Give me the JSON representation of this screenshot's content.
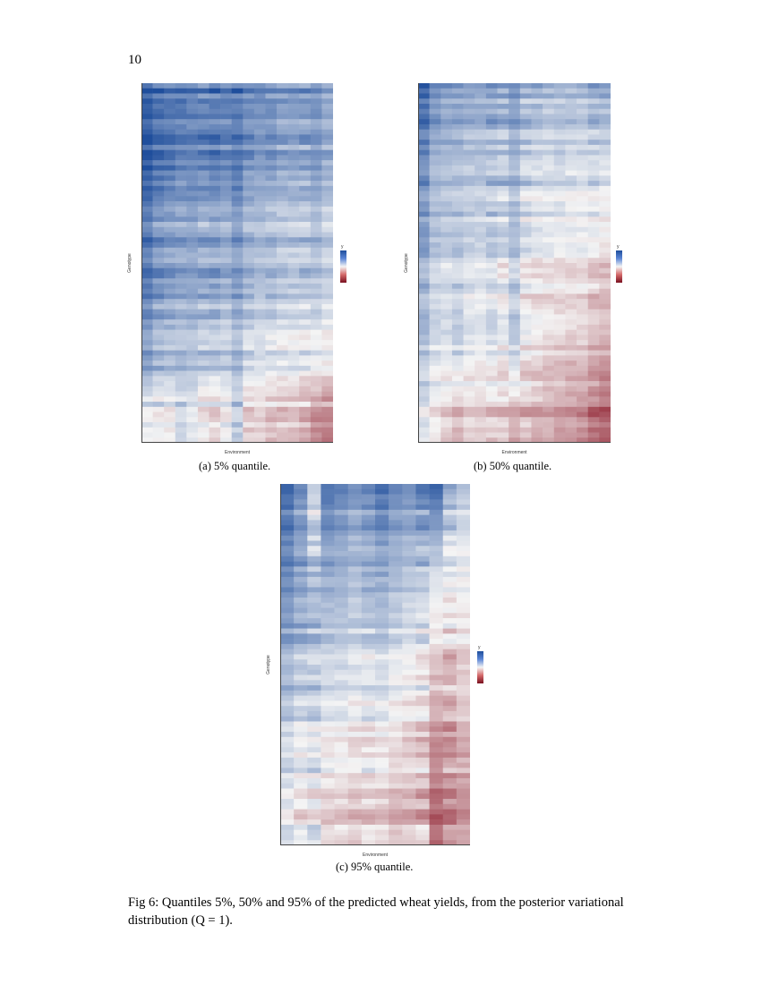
{
  "page_number": "10",
  "panels": [
    {
      "id": "a",
      "caption": "(a) 5% quantile.",
      "xlabel": "Environment",
      "ylabel": "Genotype",
      "legend_title": "y",
      "n_cols": 17,
      "n_rows": 70,
      "colors": {
        "high": "#1f4e9c",
        "mid": "#f4f4f4",
        "low": "#8a1525"
      },
      "coarse_values_top_to_bottom": [
        [
          0.95,
          0.85,
          0.8,
          0.8,
          0.75,
          0.75,
          0.8,
          0.75,
          0.8,
          0.7,
          0.65,
          0.65,
          0.6,
          0.6,
          0.6,
          0.65,
          0.5
        ],
        [
          0.85,
          0.7,
          0.65,
          0.6,
          0.6,
          0.55,
          0.6,
          0.55,
          0.65,
          0.5,
          0.45,
          0.45,
          0.4,
          0.4,
          0.4,
          0.45,
          0.35
        ],
        [
          0.7,
          0.55,
          0.5,
          0.45,
          0.45,
          0.4,
          0.45,
          0.4,
          0.5,
          0.35,
          0.3,
          0.3,
          0.25,
          0.25,
          0.25,
          0.3,
          0.2
        ],
        [
          0.55,
          0.4,
          0.35,
          0.35,
          0.35,
          0.3,
          0.3,
          0.25,
          0.35,
          0.2,
          0.15,
          0.15,
          0.1,
          0.1,
          0.1,
          0.1,
          0.05
        ],
        [
          0.05,
          0.05,
          0.0,
          0.2,
          0.1,
          0.0,
          -0.1,
          0.05,
          0.3,
          -0.15,
          -0.15,
          -0.2,
          -0.2,
          -0.2,
          -0.25,
          -0.45,
          -0.5
        ]
      ]
    },
    {
      "id": "b",
      "caption": "(b) 50% quantile.",
      "xlabel": "Environment",
      "ylabel": "Genotype",
      "legend_title": "y",
      "n_cols": 17,
      "n_rows": 70,
      "colors": {
        "high": "#1f4e9c",
        "mid": "#f4f4f4",
        "low": "#8a1525"
      },
      "coarse_values_top_to_bottom": [
        [
          0.85,
          0.65,
          0.55,
          0.5,
          0.45,
          0.45,
          0.5,
          0.45,
          0.55,
          0.4,
          0.4,
          0.35,
          0.35,
          0.35,
          0.35,
          0.45,
          0.45
        ],
        [
          0.65,
          0.4,
          0.35,
          0.35,
          0.3,
          0.3,
          0.35,
          0.3,
          0.4,
          0.25,
          0.2,
          0.2,
          0.2,
          0.15,
          0.15,
          0.2,
          0.15
        ],
        [
          0.45,
          0.25,
          0.2,
          0.25,
          0.15,
          0.15,
          0.2,
          0.1,
          0.3,
          0.05,
          0.0,
          0.0,
          -0.05,
          -0.05,
          -0.05,
          -0.1,
          -0.15
        ],
        [
          0.25,
          0.1,
          0.05,
          0.15,
          0.0,
          0.0,
          0.05,
          -0.05,
          0.2,
          -0.1,
          -0.15,
          -0.2,
          -0.2,
          -0.25,
          -0.25,
          -0.35,
          -0.4
        ],
        [
          0.05,
          -0.1,
          -0.2,
          -0.35,
          -0.2,
          -0.2,
          -0.25,
          -0.25,
          -0.4,
          -0.3,
          -0.35,
          -0.35,
          -0.4,
          -0.45,
          -0.5,
          -0.65,
          -0.7
        ]
      ]
    },
    {
      "id": "c",
      "caption": "(c) 95% quantile.",
      "xlabel": "Environment",
      "ylabel": "Genotype",
      "legend_title": "y",
      "n_cols": 14,
      "n_rows": 70,
      "colors": {
        "high": "#1f4e9c",
        "mid": "#f4f4f4",
        "low": "#8a1525"
      },
      "coarse_values_top_to_bottom": [
        [
          0.8,
          0.6,
          0.1,
          0.75,
          0.65,
          0.55,
          0.6,
          0.75,
          0.65,
          0.6,
          0.7,
          0.85,
          0.4,
          0.25
        ],
        [
          0.6,
          0.45,
          0.3,
          0.4,
          0.35,
          0.3,
          0.35,
          0.4,
          0.3,
          0.25,
          0.2,
          0.1,
          0.0,
          0.0
        ],
        [
          0.4,
          0.3,
          0.3,
          0.2,
          0.2,
          0.15,
          0.15,
          0.2,
          0.1,
          0.05,
          0.0,
          -0.2,
          -0.2,
          -0.15
        ],
        [
          0.2,
          0.1,
          0.15,
          0.0,
          0.0,
          -0.05,
          0.0,
          0.0,
          -0.1,
          -0.15,
          -0.15,
          -0.45,
          -0.35,
          -0.3
        ],
        [
          0.05,
          -0.1,
          0.0,
          -0.2,
          -0.2,
          -0.25,
          -0.2,
          -0.25,
          -0.3,
          -0.3,
          -0.3,
          -0.65,
          -0.5,
          -0.45
        ]
      ]
    }
  ],
  "figure_caption": "Fig 6: Quantiles 5%, 50% and 95% of the predicted wheat yields, from the posterior variational distribution (Q = 1)."
}
